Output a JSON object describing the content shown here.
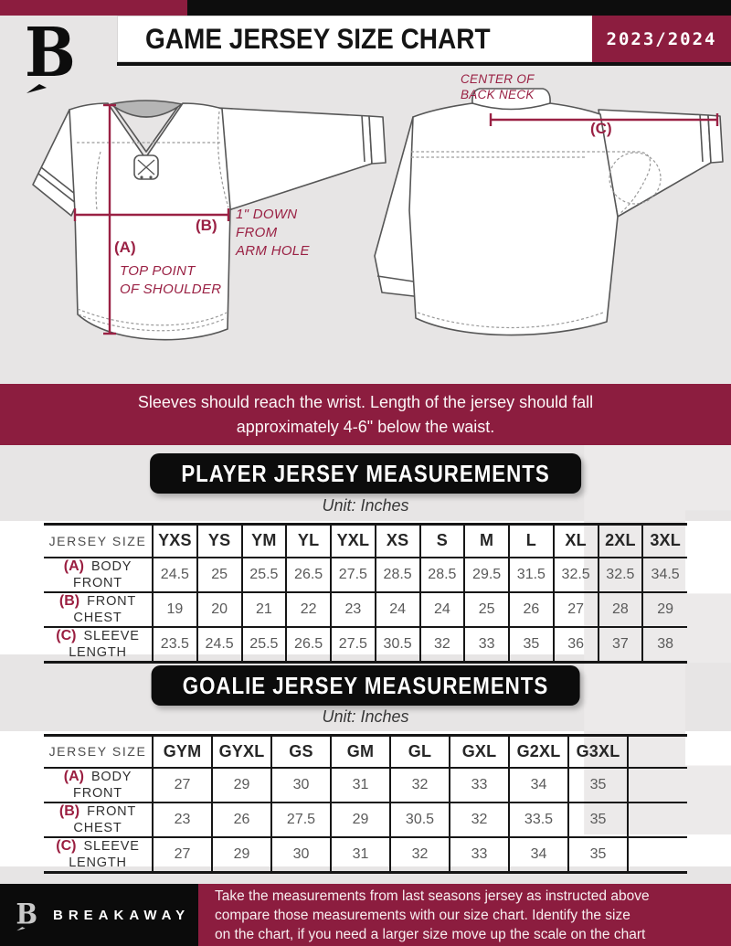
{
  "colors": {
    "maroon": "#8C1D3F",
    "accent_text": "#9A2144",
    "black": "#0d0d0d",
    "gray_band": "#E7E5E5"
  },
  "header": {
    "title": "GAME JERSEY SIZE CHART",
    "season": "2023/2024",
    "logo": "breakaway-b-monogram"
  },
  "diagram": {
    "front": {
      "a_key": "(A)",
      "a_note_lines": [
        "TOP POINT",
        "OF SHOULDER"
      ],
      "b_key": "(B)",
      "b_note_lines": [
        "1\" DOWN",
        "FROM",
        "ARM HOLE"
      ]
    },
    "back": {
      "c_key": "(C)",
      "c_note_lines": [
        "CENTER OF",
        "BACK NECK"
      ]
    }
  },
  "note_banner": {
    "lines": [
      "Sleeves should reach the wrist. Length of the jersey should fall",
      "approximately 4-6\" below the waist."
    ]
  },
  "player": {
    "banner": "PLAYER JERSEY MEASUREMENTS",
    "unit": "Unit: Inches",
    "size_header": "JERSEY SIZE",
    "columns": [
      "YXS",
      "YS",
      "YM",
      "YL",
      "YXL",
      "XS",
      "S",
      "M",
      "L",
      "XL",
      "2XL",
      "3XL"
    ],
    "rows": [
      {
        "key": "(A)",
        "label": "BODY FRONT",
        "values": [
          "24.5",
          "25",
          "25.5",
          "26.5",
          "27.5",
          "28.5",
          "28.5",
          "29.5",
          "31.5",
          "32.5",
          "32.5",
          "34.5"
        ]
      },
      {
        "key": "(B)",
        "label": "FRONT CHEST",
        "values": [
          "19",
          "20",
          "21",
          "22",
          "23",
          "24",
          "24",
          "25",
          "26",
          "27",
          "28",
          "29"
        ]
      },
      {
        "key": "(C)",
        "label": "SLEEVE LENGTH",
        "values": [
          "23.5",
          "24.5",
          "25.5",
          "26.5",
          "27.5",
          "30.5",
          "32",
          "33",
          "35",
          "36",
          "37",
          "38"
        ]
      }
    ],
    "trailing_empty_column": false
  },
  "goalie": {
    "banner": "GOALIE JERSEY MEASUREMENTS",
    "unit": "Unit: Inches",
    "size_header": "JERSEY SIZE",
    "columns": [
      "GYM",
      "GYXL",
      "GS",
      "GM",
      "GL",
      "GXL",
      "G2XL",
      "G3XL"
    ],
    "rows": [
      {
        "key": "(A)",
        "label": "BODY FRONT",
        "values": [
          "27",
          "29",
          "30",
          "31",
          "32",
          "33",
          "34",
          "35"
        ]
      },
      {
        "key": "(B)",
        "label": "FRONT CHEST",
        "values": [
          "23",
          "26",
          "27.5",
          "29",
          "30.5",
          "32",
          "33.5",
          "35"
        ]
      },
      {
        "key": "(C)",
        "label": "SLEEVE LENGTH",
        "values": [
          "27",
          "29",
          "30",
          "31",
          "32",
          "33",
          "34",
          "35"
        ]
      }
    ],
    "trailing_empty_column": true
  },
  "footer": {
    "brand": "BREAKAWAY",
    "note_lines": [
      "Take the measurements from last seasons jersey as instructed above",
      "compare those measurements  with our size chart. Identify the size",
      "on the chart, if you need a larger size move up the scale on the chart"
    ]
  },
  "watermark_glyph": "B"
}
